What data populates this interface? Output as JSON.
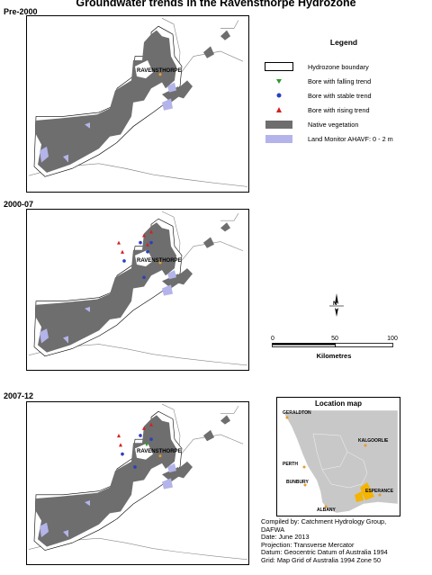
{
  "title": "Groundwater trends in the Ravensthorpe Hydrozone",
  "panels": [
    {
      "label": "Pre-2000",
      "place": "RAVENSTHORPE"
    },
    {
      "label": "2000-07",
      "place": "RAVENSTHORPE"
    },
    {
      "label": "2007-12",
      "place": "RAVENSTHORPE"
    }
  ],
  "legend": {
    "title": "Legend",
    "items": [
      {
        "label": "Hydrozone boundary",
        "symbol": "boundary-box"
      },
      {
        "label": "Bore with falling trend",
        "symbol": "falling-triangle",
        "color": "#2e9a2e"
      },
      {
        "label": "Bore with stable trend",
        "symbol": "stable-dot",
        "color": "#2b3fbf"
      },
      {
        "label": "Bore with rising trend",
        "symbol": "rising-triangle",
        "color": "#d42020"
      },
      {
        "label": "Native vegetation",
        "symbol": "grey-fill",
        "color": "#6e6e6e"
      },
      {
        "label": "Land Monitor AHAVF: 0 - 2 m",
        "symbol": "lavender-fill",
        "color": "#b4b4ea"
      }
    ]
  },
  "north_arrow": {
    "label": "N"
  },
  "scale": {
    "ticks": [
      "0",
      "50",
      "100"
    ],
    "unit": "Kilometres"
  },
  "location_map": {
    "title": "Location map",
    "towns": [
      "GERALDTON",
      "KALGOORLIE",
      "PERTH",
      "BUNBURY",
      "ESPERANCE",
      "ALBANY"
    ]
  },
  "credits": [
    "Compiled by:  Catchment Hydrology Group,",
    "DAFWA",
    "Date:  June 2013",
    "Projection:  Transverse Mercator",
    "Datum:  Geocentric Datum of Australia 1994",
    "Grid:  Map Grid of Australia 1994 Zone 50"
  ],
  "colors": {
    "vegetation": "#6e6e6e",
    "ahavf": "#b4b4ea",
    "falling": "#2e9a2e",
    "stable": "#2b3fbf",
    "rising": "#d42020",
    "town_marker": "#e89a2a",
    "statewide": "#c8c8c8",
    "hydrozone_highlight": "#f4b400"
  }
}
